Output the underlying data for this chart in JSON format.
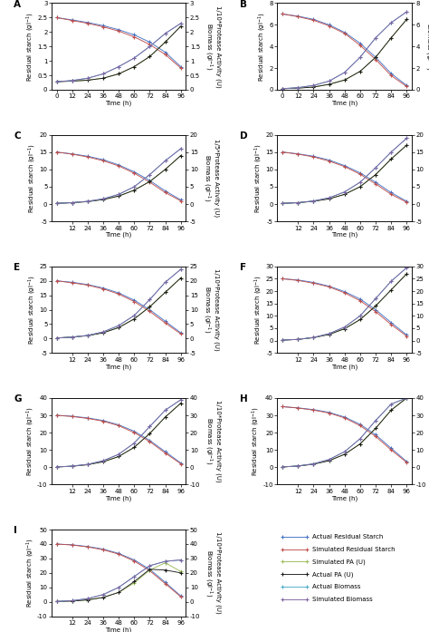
{
  "panels": [
    {
      "label": "A",
      "ylim": [
        0.0,
        3.0
      ],
      "yticks": [
        0.0,
        0.5,
        1.0,
        1.5,
        2.0,
        2.5,
        3.0
      ],
      "right_scale": "1/10",
      "xticks": [
        0,
        12,
        24,
        36,
        48,
        60,
        72,
        84,
        96
      ],
      "time": [
        0,
        12,
        24,
        36,
        48,
        60,
        72,
        84,
        96
      ],
      "actual_starch": [
        2.5,
        2.42,
        2.33,
        2.22,
        2.08,
        1.9,
        1.65,
        1.3,
        0.8
      ],
      "sim_starch": [
        2.5,
        2.4,
        2.3,
        2.18,
        2.03,
        1.83,
        1.57,
        1.22,
        0.75
      ],
      "sim_pa": [
        0.28,
        0.3,
        0.33,
        0.4,
        0.55,
        0.8,
        1.15,
        1.65,
        2.2
      ],
      "actual_pa": [
        0.28,
        0.3,
        0.33,
        0.4,
        0.55,
        0.8,
        1.15,
        1.65,
        2.2
      ],
      "actual_biomass": [
        0.28,
        0.32,
        0.4,
        0.55,
        0.8,
        1.1,
        1.5,
        1.95,
        2.3
      ],
      "sim_biomass": [
        0.28,
        0.32,
        0.4,
        0.55,
        0.8,
        1.1,
        1.5,
        1.95,
        2.3
      ]
    },
    {
      "label": "B",
      "ylim": [
        0,
        8
      ],
      "yticks": [
        0,
        2,
        4,
        6,
        8
      ],
      "right_scale": "1/5",
      "xticks": [
        0,
        12,
        24,
        36,
        48,
        60,
        72,
        84,
        96
      ],
      "time": [
        0,
        12,
        24,
        36,
        48,
        60,
        72,
        84,
        96
      ],
      "actual_starch": [
        7.0,
        6.8,
        6.5,
        6.0,
        5.3,
        4.3,
        3.0,
        1.5,
        0.4
      ],
      "sim_starch": [
        7.0,
        6.75,
        6.42,
        5.9,
        5.2,
        4.1,
        2.8,
        1.3,
        0.3
      ],
      "sim_pa": [
        0.1,
        0.15,
        0.25,
        0.5,
        0.9,
        1.7,
        3.0,
        4.8,
        6.5
      ],
      "actual_pa": [
        0.1,
        0.15,
        0.25,
        0.5,
        0.9,
        1.7,
        3.0,
        4.8,
        6.5
      ],
      "actual_biomass": [
        0.1,
        0.2,
        0.4,
        0.8,
        1.6,
        3.0,
        4.8,
        6.2,
        7.2
      ],
      "sim_biomass": [
        0.1,
        0.2,
        0.4,
        0.8,
        1.6,
        3.0,
        4.8,
        6.2,
        7.2
      ]
    },
    {
      "label": "C",
      "ylim": [
        -5,
        20
      ],
      "yticks": [
        -5,
        0,
        5,
        10,
        15,
        20
      ],
      "right_scale": "1/5",
      "xticks": [
        12,
        24,
        36,
        48,
        60,
        72,
        84,
        96
      ],
      "time": [
        0,
        12,
        24,
        36,
        48,
        60,
        72,
        84,
        96
      ],
      "actual_starch": [
        15.0,
        14.5,
        13.8,
        12.8,
        11.3,
        9.3,
        6.8,
        3.8,
        1.2
      ],
      "sim_starch": [
        15.0,
        14.4,
        13.6,
        12.5,
        11.0,
        8.9,
        6.3,
        3.3,
        0.9
      ],
      "sim_pa": [
        0.2,
        0.4,
        0.7,
        1.3,
        2.3,
        4.0,
        6.5,
        10.0,
        14.0
      ],
      "actual_pa": [
        0.2,
        0.4,
        0.7,
        1.3,
        2.3,
        4.0,
        6.5,
        10.0,
        14.0
      ],
      "actual_biomass": [
        0.2,
        0.4,
        0.8,
        1.5,
        2.8,
        5.0,
        8.5,
        12.5,
        16.0
      ],
      "sim_biomass": [
        0.2,
        0.4,
        0.8,
        1.5,
        2.8,
        5.0,
        8.5,
        12.5,
        16.0
      ]
    },
    {
      "label": "D",
      "ylim": [
        -5,
        20
      ],
      "yticks": [
        -5,
        0,
        5,
        10,
        15,
        20
      ],
      "right_scale": "1/10",
      "xticks": [
        12,
        24,
        36,
        48,
        60,
        72,
        84,
        96
      ],
      "time": [
        0,
        12,
        24,
        36,
        48,
        60,
        72,
        84,
        96
      ],
      "actual_starch": [
        15.0,
        14.5,
        13.8,
        12.7,
        11.1,
        9.0,
        6.3,
        3.3,
        0.8
      ],
      "sim_starch": [
        15.0,
        14.4,
        13.6,
        12.4,
        10.8,
        8.6,
        5.8,
        2.8,
        0.5
      ],
      "sim_pa": [
        0.2,
        0.4,
        0.8,
        1.5,
        2.8,
        5.0,
        8.5,
        13.0,
        17.0
      ],
      "actual_pa": [
        0.2,
        0.4,
        0.8,
        1.5,
        2.8,
        5.0,
        8.5,
        13.0,
        17.0
      ],
      "actual_biomass": [
        0.2,
        0.4,
        0.9,
        1.8,
        3.5,
        6.3,
        10.5,
        15.0,
        19.0
      ],
      "sim_biomass": [
        0.2,
        0.4,
        0.9,
        1.8,
        3.5,
        6.3,
        10.5,
        15.0,
        19.0
      ]
    },
    {
      "label": "E",
      "ylim": [
        -5,
        25
      ],
      "yticks": [
        -5,
        0,
        5,
        10,
        15,
        20,
        25
      ],
      "right_scale": "1/10",
      "xticks": [
        12,
        24,
        36,
        48,
        60,
        72,
        84,
        96
      ],
      "time": [
        0,
        12,
        24,
        36,
        48,
        60,
        72,
        84,
        96
      ],
      "actual_starch": [
        20.0,
        19.5,
        18.7,
        17.5,
        15.8,
        13.3,
        10.0,
        6.0,
        2.0
      ],
      "sim_starch": [
        20.0,
        19.3,
        18.5,
        17.2,
        15.4,
        12.8,
        9.4,
        5.4,
        1.6
      ],
      "sim_pa": [
        0.2,
        0.5,
        1.0,
        2.0,
        3.8,
        6.8,
        11.0,
        16.0,
        21.0
      ],
      "actual_pa": [
        0.2,
        0.5,
        1.0,
        2.0,
        3.8,
        6.8,
        11.0,
        16.0,
        21.0
      ],
      "actual_biomass": [
        0.2,
        0.5,
        1.1,
        2.3,
        4.5,
        8.0,
        13.5,
        19.5,
        24.0
      ],
      "sim_biomass": [
        0.2,
        0.5,
        1.1,
        2.3,
        4.5,
        8.0,
        13.5,
        19.5,
        24.0
      ]
    },
    {
      "label": "F",
      "ylim": [
        -5,
        30
      ],
      "yticks": [
        -5,
        0,
        5,
        10,
        15,
        20,
        25,
        30
      ],
      "right_scale": "1/10",
      "xticks": [
        12,
        24,
        36,
        48,
        60,
        72,
        84,
        96
      ],
      "time": [
        0,
        12,
        24,
        36,
        48,
        60,
        72,
        84,
        96
      ],
      "actual_starch": [
        25.0,
        24.5,
        23.5,
        22.0,
        19.8,
        16.8,
        12.5,
        7.3,
        2.3
      ],
      "sim_starch": [
        25.0,
        24.3,
        23.2,
        21.7,
        19.3,
        16.1,
        11.7,
        6.5,
        1.8
      ],
      "sim_pa": [
        0.2,
        0.5,
        1.2,
        2.5,
        4.8,
        8.5,
        14.0,
        20.5,
        27.0
      ],
      "actual_pa": [
        0.2,
        0.5,
        1.2,
        2.5,
        4.8,
        8.5,
        14.0,
        20.5,
        27.0
      ],
      "actual_biomass": [
        0.2,
        0.5,
        1.3,
        2.8,
        5.5,
        10.0,
        17.0,
        24.0,
        29.5
      ],
      "sim_biomass": [
        0.2,
        0.5,
        1.3,
        2.8,
        5.5,
        10.0,
        17.0,
        24.0,
        29.5
      ]
    },
    {
      "label": "G",
      "ylim": [
        -10,
        40
      ],
      "yticks": [
        -10,
        0,
        10,
        20,
        30,
        40
      ],
      "right_scale": "1/10",
      "xticks": [
        12,
        24,
        36,
        48,
        60,
        72,
        84,
        96
      ],
      "time": [
        0,
        12,
        24,
        36,
        48,
        60,
        72,
        84,
        96
      ],
      "actual_starch": [
        30.0,
        29.5,
        28.5,
        27.0,
        24.5,
        20.8,
        15.5,
        9.0,
        2.5
      ],
      "sim_starch": [
        30.0,
        29.3,
        28.2,
        26.6,
        24.0,
        20.0,
        14.8,
        8.2,
        2.0
      ],
      "sim_pa": [
        0.2,
        0.6,
        1.5,
        3.2,
        6.2,
        11.5,
        19.5,
        29.0,
        37.0
      ],
      "actual_pa": [
        0.2,
        0.6,
        1.5,
        3.2,
        6.2,
        11.5,
        19.5,
        29.0,
        37.0
      ],
      "actual_biomass": [
        0.2,
        0.7,
        1.7,
        3.8,
        7.5,
        14.0,
        23.5,
        33.0,
        39.0
      ],
      "sim_biomass": [
        0.2,
        0.7,
        1.7,
        3.8,
        7.5,
        14.0,
        23.5,
        33.0,
        39.0
      ]
    },
    {
      "label": "H",
      "ylim": [
        -10,
        40
      ],
      "yticks": [
        -10,
        0,
        10,
        20,
        30,
        40
      ],
      "right_scale": "1/10",
      "xticks": [
        12,
        24,
        36,
        48,
        60,
        72,
        84,
        96
      ],
      "time": [
        0,
        12,
        24,
        36,
        48,
        60,
        72,
        84,
        96
      ],
      "actual_starch": [
        35.0,
        34.3,
        33.3,
        31.7,
        29.0,
        24.8,
        18.8,
        11.0,
        3.3
      ],
      "sim_starch": [
        35.0,
        34.2,
        33.0,
        31.3,
        28.5,
        24.0,
        17.8,
        10.0,
        2.8
      ],
      "sim_pa": [
        0.2,
        0.7,
        1.8,
        3.8,
        7.5,
        13.5,
        22.5,
        33.0,
        40.0
      ],
      "actual_pa": [
        0.2,
        0.7,
        1.8,
        3.8,
        7.5,
        13.5,
        22.5,
        33.0,
        40.0
      ],
      "actual_biomass": [
        0.2,
        0.8,
        2.0,
        4.5,
        9.0,
        16.5,
        27.0,
        36.5,
        40.0
      ],
      "sim_biomass": [
        0.2,
        0.8,
        2.0,
        4.5,
        9.0,
        16.5,
        27.0,
        36.5,
        40.0
      ]
    },
    {
      "label": "I",
      "ylim": [
        -10,
        50
      ],
      "yticks": [
        -10,
        0,
        10,
        20,
        30,
        40,
        50
      ],
      "right_scale": "1/10",
      "xticks": [
        12,
        24,
        36,
        48,
        60,
        72,
        84,
        96
      ],
      "time": [
        0,
        12,
        24,
        36,
        48,
        60,
        72,
        84,
        96
      ],
      "actual_starch": [
        40.0,
        39.5,
        38.3,
        36.5,
        33.5,
        29.0,
        22.5,
        13.5,
        4.0
      ],
      "sim_starch": [
        40.0,
        39.3,
        38.0,
        36.0,
        33.0,
        28.2,
        21.5,
        12.5,
        3.5
      ],
      "sim_pa": [
        0.2,
        0.5,
        1.3,
        3.0,
        6.5,
        13.0,
        22.0,
        27.0,
        21.0
      ],
      "actual_pa": [
        0.2,
        0.5,
        1.3,
        3.0,
        6.5,
        14.0,
        22.5,
        22.0,
        20.0
      ],
      "actual_biomass": [
        0.2,
        0.8,
        2.2,
        5.0,
        10.0,
        17.5,
        25.0,
        28.0,
        29.0
      ],
      "sim_biomass": [
        0.2,
        0.8,
        2.2,
        5.0,
        10.0,
        17.5,
        25.0,
        28.0,
        29.0
      ]
    }
  ],
  "colors": {
    "actual_starch": "#4472C4",
    "sim_starch": "#C0504D",
    "sim_pa": "#9BBB59",
    "actual_pa": "#1C1C1C",
    "actual_biomass": "#4BACC6",
    "sim_biomass": "#8064A2"
  },
  "legend_labels": [
    "Actual Residual Starch",
    "Simulated Residual Starch",
    "Simulated PA (U)",
    "Actual PA (U)",
    "Actual Biomass",
    "Simulated Biomass"
  ],
  "legend_color_keys": [
    "actual_starch",
    "sim_starch",
    "sim_pa",
    "actual_pa",
    "actual_biomass",
    "sim_biomass"
  ]
}
